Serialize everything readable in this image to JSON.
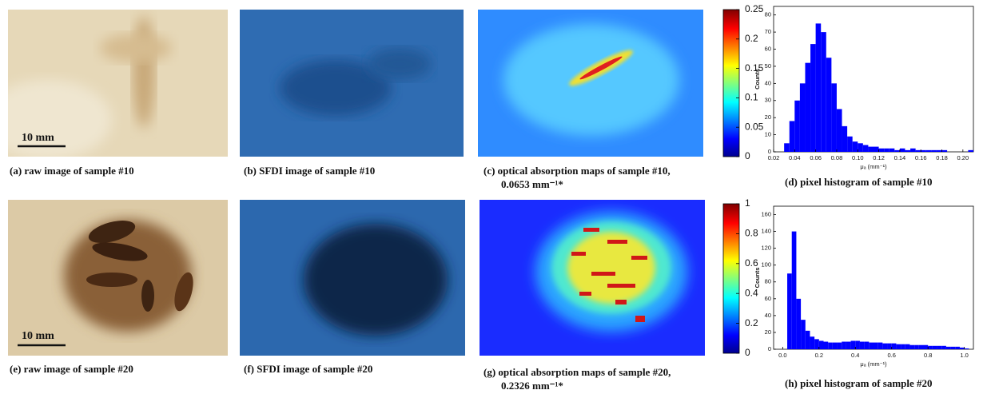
{
  "panels": [
    {
      "caption": "(a) raw image of sample #10",
      "scale_label": "10 mm"
    },
    {
      "caption": "(b) SFDI image of sample #10"
    },
    {
      "caption": "(c) optical absorption maps of sample #10,",
      "caption_2": "0.0653 mm⁻¹*"
    },
    {
      "caption": "(d) pixel histogram of sample #10"
    },
    {
      "caption": "(e) raw image of sample #20",
      "scale_label": "10 mm"
    },
    {
      "caption": "(f) SFDI image of sample #20"
    },
    {
      "caption": "(g) optical absorption maps of sample #20,",
      "caption_2": "0.2326 mm⁻¹*"
    },
    {
      "caption": "(h) pixel histogram of sample #20"
    }
  ],
  "colorbars": [
    {
      "lim": [
        0,
        0.25
      ],
      "ticks": [
        0,
        0.05,
        0.1,
        0.15,
        0.2,
        0.25
      ]
    },
    {
      "lim": [
        0,
        1
      ],
      "ticks": [
        0,
        0.2,
        0.4,
        0.6,
        0.8,
        1
      ]
    }
  ],
  "chart_data": [
    {
      "type": "histogram",
      "x_label": "μₐ (mm⁻¹)",
      "y_label": "Counts",
      "color": "#0000ff",
      "bins": [
        0.03,
        0.035,
        0.04,
        0.045,
        0.05,
        0.055,
        0.06,
        0.065,
        0.07,
        0.075,
        0.08,
        0.085,
        0.09,
        0.095,
        0.1,
        0.105,
        0.11,
        0.115,
        0.12,
        0.125,
        0.13,
        0.135,
        0.14,
        0.145,
        0.15,
        0.155,
        0.16,
        0.165,
        0.17,
        0.175,
        0.18,
        0.185,
        0.19,
        0.195,
        0.2,
        0.205,
        0.21
      ],
      "counts": [
        5,
        18,
        30,
        40,
        52,
        63,
        75,
        70,
        55,
        40,
        25,
        15,
        9,
        6,
        5,
        4,
        3,
        3,
        2,
        2,
        2,
        1,
        2,
        1,
        2,
        1,
        1,
        1,
        1,
        1,
        1,
        0,
        0,
        0,
        0,
        1
      ],
      "xlim": [
        0.02,
        0.21
      ],
      "xticks": [
        0.02,
        0.04,
        0.06,
        0.08,
        {
          "value": 0.1,
          "label": "0.10"
        },
        0.12,
        0.14,
        0.16,
        0.18,
        {
          "value": 0.2,
          "label": "0.20"
        }
      ],
      "ylim": [
        0,
        85
      ],
      "yticks": [
        0,
        10,
        20,
        30,
        40,
        50,
        60,
        70,
        80
      ]
    },
    {
      "type": "histogram",
      "x_label": "μₐ (mm⁻¹)",
      "y_label": "Counts",
      "color": "#0000ff",
      "bins": [
        0.025,
        0.05,
        0.075,
        0.1,
        0.125,
        0.15,
        0.175,
        0.2,
        0.225,
        0.25,
        0.275,
        0.3,
        0.325,
        0.35,
        0.375,
        0.4,
        0.425,
        0.45,
        0.475,
        0.5,
        0.525,
        0.55,
        0.575,
        0.6,
        0.625,
        0.65,
        0.675,
        0.7,
        0.725,
        0.75,
        0.775,
        0.8,
        0.825,
        0.85,
        0.875,
        0.9,
        0.925,
        0.95,
        0.975,
        1,
        1.025
      ],
      "counts": [
        90,
        140,
        60,
        35,
        22,
        15,
        12,
        10,
        9,
        8,
        8,
        8,
        9,
        9,
        10,
        10,
        9,
        9,
        8,
        8,
        8,
        7,
        7,
        7,
        6,
        6,
        6,
        5,
        5,
        5,
        5,
        4,
        4,
        4,
        4,
        3,
        3,
        3,
        2,
        1
      ],
      "xlim": [
        -0.05,
        1.05
      ],
      "xticks": [
        {
          "value": 0,
          "label": "0.0"
        },
        0.2,
        0.4,
        0.6,
        0.8,
        {
          "value": 1,
          "label": "1.0"
        }
      ],
      "ylim": [
        0,
        170
      ],
      "yticks": [
        0,
        20,
        40,
        60,
        80,
        100,
        120,
        140,
        160
      ]
    }
  ]
}
